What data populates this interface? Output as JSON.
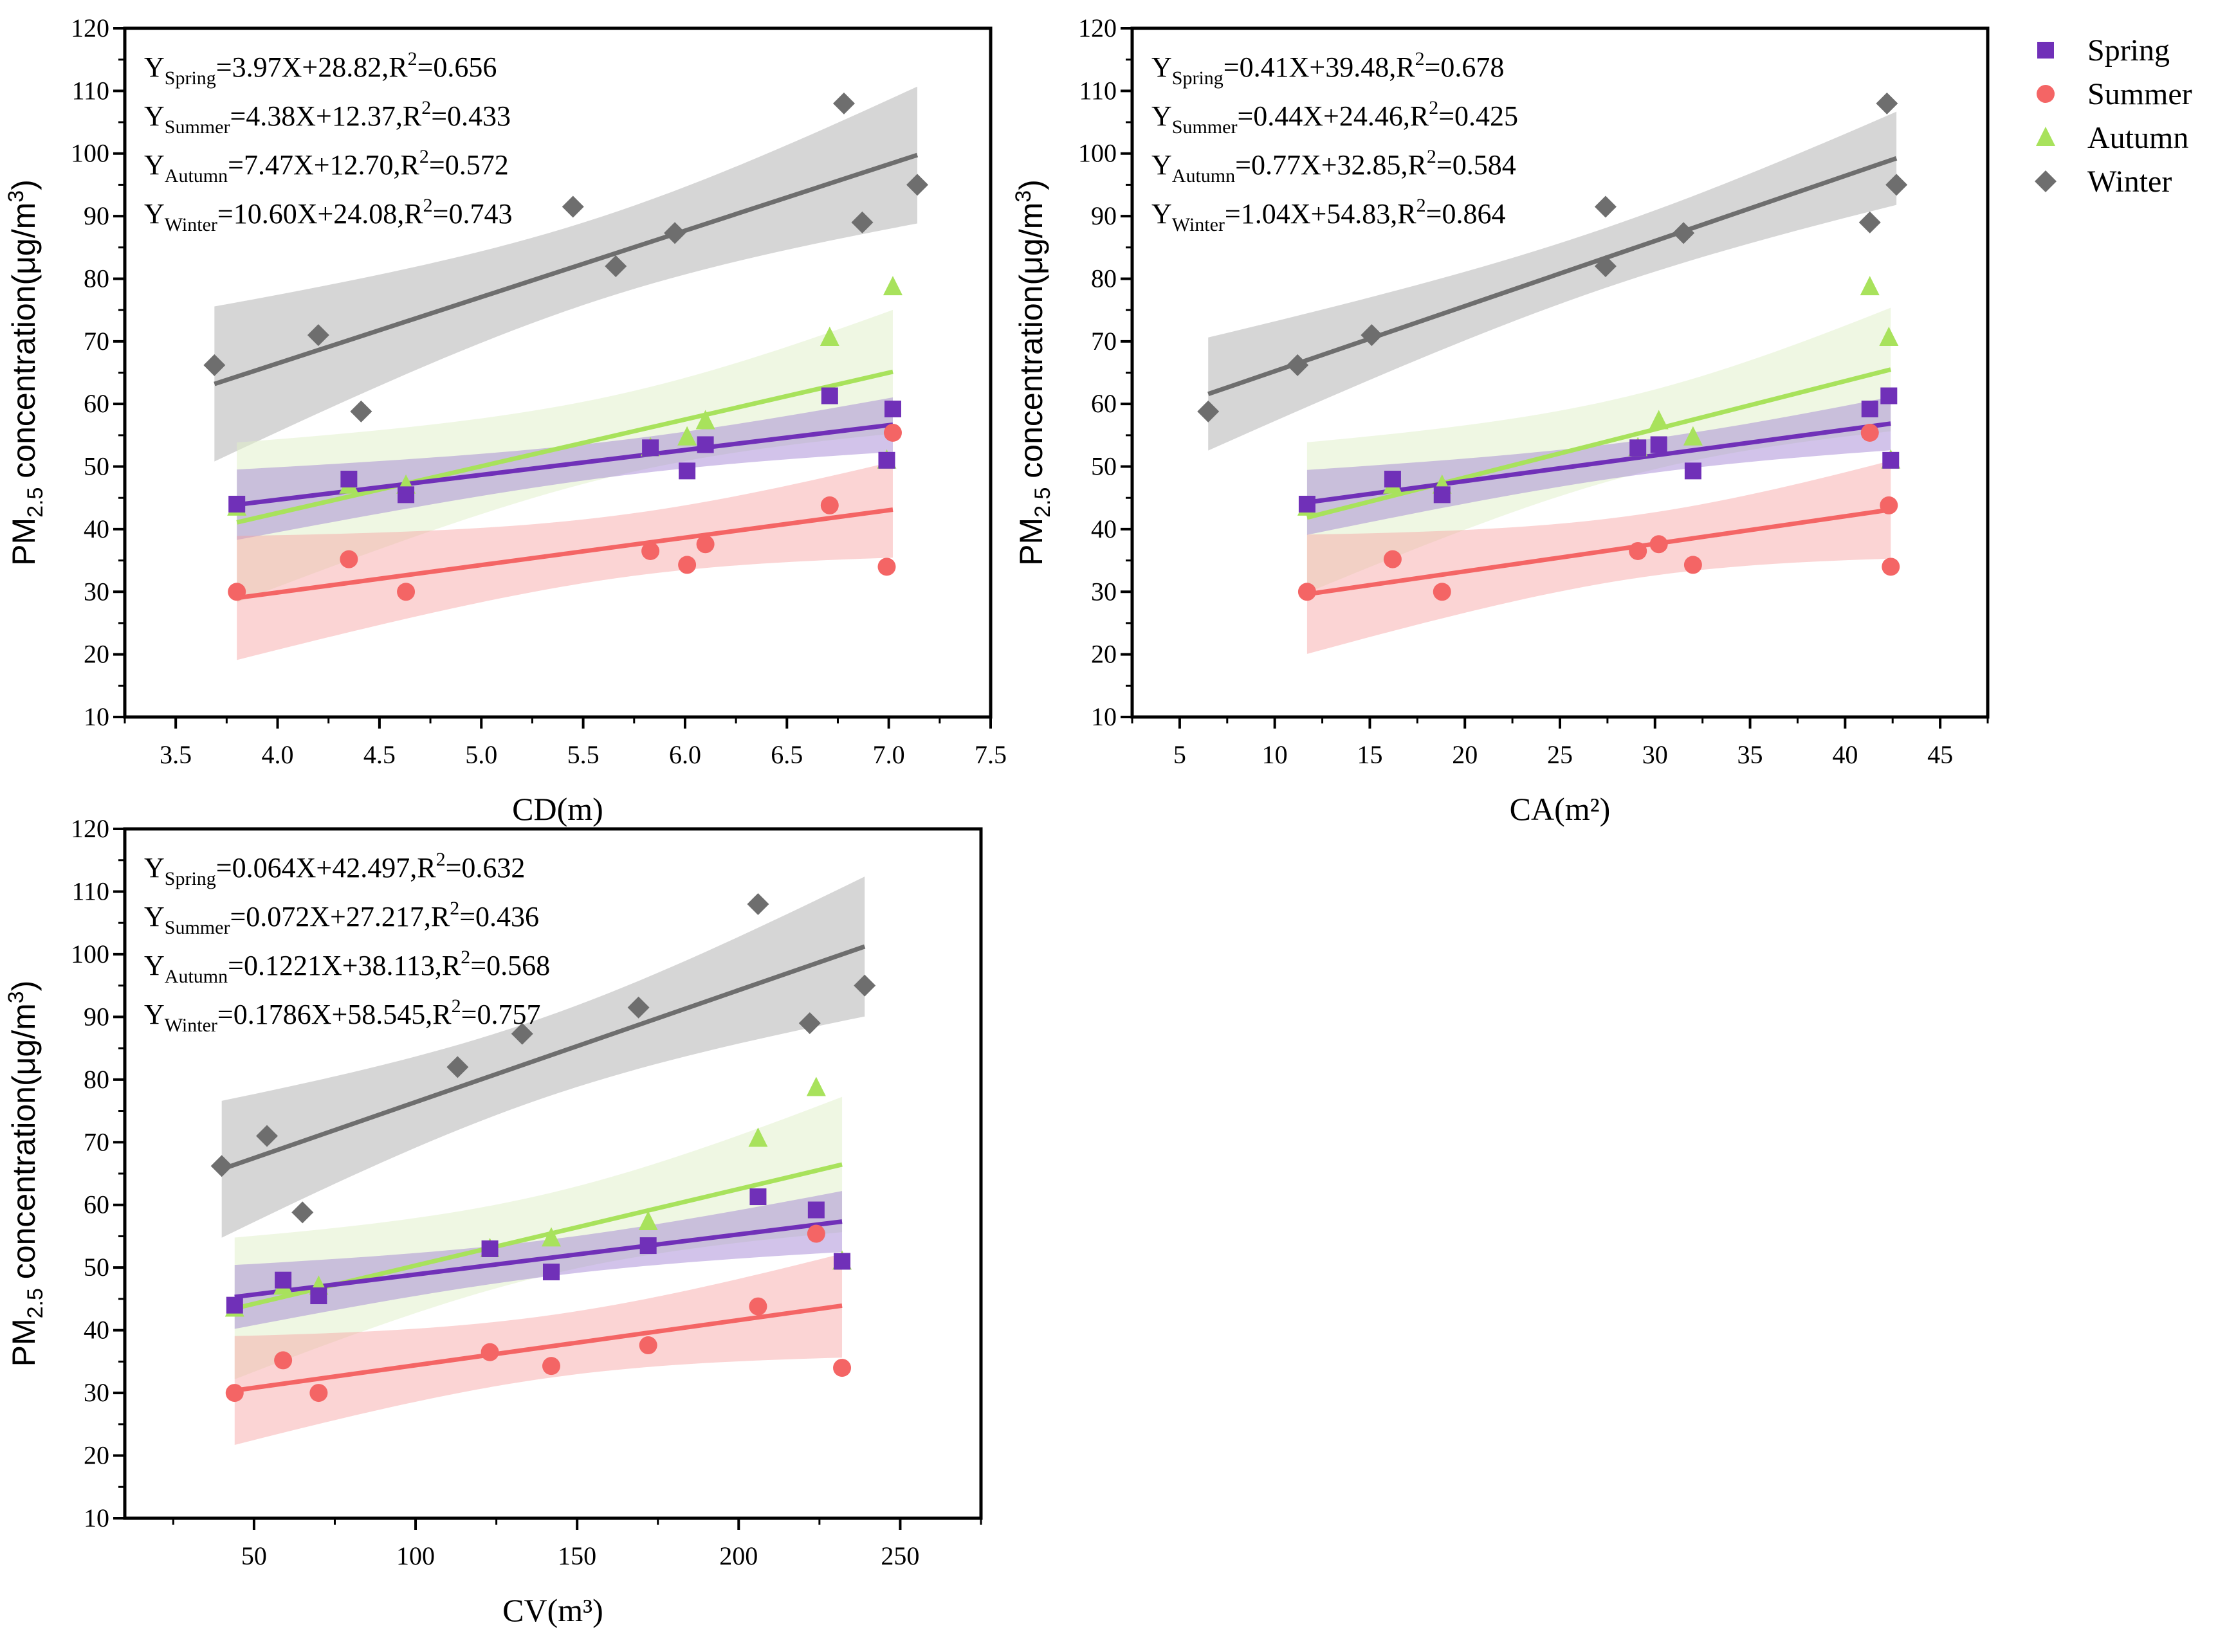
{
  "legend": [
    {
      "name": "Spring",
      "color": "#7030b8",
      "marker": "square"
    },
    {
      "name": "Summer",
      "color": "#f46565",
      "marker": "circle"
    },
    {
      "name": "Autumn",
      "color": "#a8e25c",
      "marker": "triangle"
    },
    {
      "name": "Winter",
      "color": "#6e6e6e",
      "marker": "diamond"
    }
  ],
  "chart_data": [
    {
      "type": "scatter",
      "xlabel": "CD(m)",
      "ylabel": {
        "main": "PM",
        "sub": "2.5",
        "rest": " concentration(μg/m",
        "sup": "3",
        "end": ")"
      },
      "xlim": [
        3.25,
        7.5
      ],
      "ylim": [
        10,
        120
      ],
      "xticks": [
        "3.5",
        "4.0",
        "4.5",
        "5.0",
        "5.5",
        "6.0",
        "6.5",
        "7.0",
        "7.5"
      ],
      "yticks": [
        10,
        20,
        30,
        40,
        50,
        60,
        70,
        80,
        90,
        100,
        110,
        120
      ],
      "equations": [
        {
          "season": "Spring",
          "expr": "=3.97X+28.82,R",
          "r2": "=0.656",
          "slope": 3.97,
          "intercept": 28.82
        },
        {
          "season": "Summer",
          "expr": "=4.38X+12.37,R",
          "r2": "=0.433",
          "slope": 4.38,
          "intercept": 12.37
        },
        {
          "season": "Autumn",
          "expr": "=7.47X+12.70,R",
          "r2": "=0.572",
          "slope": 7.47,
          "intercept": 12.7
        },
        {
          "season": "Winter",
          "expr": "=10.60X+24.08,R",
          "r2": "=0.743",
          "slope": 10.6,
          "intercept": 24.08
        }
      ],
      "series": [
        {
          "name": "Winter",
          "x": [
            3.69,
            4.2,
            4.41,
            5.45,
            5.66,
            5.95,
            6.78,
            6.87,
            7.14
          ],
          "y": [
            66.2,
            71,
            58.8,
            91.5,
            82,
            87.3,
            108,
            89,
            95
          ]
        },
        {
          "name": "Autumn",
          "x": [
            3.8,
            4.35,
            4.63,
            5.83,
            6.01,
            6.1,
            6.71,
            6.99,
            7.02
          ],
          "y": [
            43.5,
            47,
            47,
            53,
            54.7,
            57.3,
            70.6,
            51,
            78.7
          ]
        },
        {
          "name": "Spring",
          "x": [
            3.8,
            4.35,
            4.63,
            5.83,
            6.01,
            6.1,
            6.71,
            6.99,
            7.02
          ],
          "y": [
            44,
            48,
            45.5,
            53,
            49.3,
            53.5,
            61.3,
            51,
            59.2
          ]
        },
        {
          "name": "Summer",
          "x": [
            3.8,
            4.35,
            4.63,
            5.83,
            6.01,
            6.1,
            6.71,
            6.99,
            7.02
          ],
          "y": [
            30,
            35.2,
            30,
            36.5,
            34.3,
            37.6,
            43.8,
            34,
            55.4
          ]
        }
      ]
    },
    {
      "type": "scatter",
      "xlabel": "CA(m²)",
      "ylabel": {
        "main": "PM",
        "sub": "2.5",
        "rest": " concentration(μg/m",
        "sup": "3",
        "end": ")"
      },
      "xlim": [
        2.5,
        47.5
      ],
      "ylim": [
        10,
        120
      ],
      "xticks": [
        "5",
        "10",
        "15",
        "20",
        "25",
        "30",
        "35",
        "40",
        "45"
      ],
      "yticks": [
        10,
        20,
        30,
        40,
        50,
        60,
        70,
        80,
        90,
        100,
        110,
        120
      ],
      "equations": [
        {
          "season": "Spring",
          "expr": "=0.41X+39.48,R",
          "r2": "=0.678",
          "slope": 0.41,
          "intercept": 39.48
        },
        {
          "season": "Summer",
          "expr": "=0.44X+24.46,R",
          "r2": "=0.425",
          "slope": 0.44,
          "intercept": 24.46
        },
        {
          "season": "Autumn",
          "expr": "=0.77X+32.85,R",
          "r2": "=0.584",
          "slope": 0.77,
          "intercept": 32.85
        },
        {
          "season": "Winter",
          "expr": "=1.04X+54.83,R",
          "r2": "=0.864",
          "slope": 1.04,
          "intercept": 54.83
        }
      ],
      "series": [
        {
          "name": "Winter",
          "x": [
            6.5,
            11.2,
            15.1,
            27.4,
            27.4,
            31.5,
            41.3,
            42.2,
            42.7
          ],
          "y": [
            58.8,
            66.2,
            71,
            91.5,
            82,
            87.3,
            89,
            108,
            95
          ]
        },
        {
          "name": "Autumn",
          "x": [
            11.7,
            16.2,
            18.8,
            29.1,
            30.2,
            32,
            41.3,
            42.3,
            42.4
          ],
          "y": [
            43.5,
            47,
            47,
            53,
            57.3,
            54.7,
            78.7,
            70.6,
            51
          ]
        },
        {
          "name": "Spring",
          "x": [
            11.7,
            16.2,
            18.8,
            29.1,
            30.2,
            32,
            41.3,
            42.3,
            42.4
          ],
          "y": [
            44,
            48,
            45.5,
            53,
            53.5,
            49.3,
            59.2,
            61.3,
            51
          ]
        },
        {
          "name": "Summer",
          "x": [
            11.7,
            16.2,
            18.8,
            29.1,
            30.2,
            32,
            41.3,
            42.3,
            42.4
          ],
          "y": [
            30,
            35.2,
            30,
            36.5,
            37.6,
            34.3,
            55.4,
            43.8,
            34
          ]
        }
      ]
    },
    {
      "type": "scatter",
      "xlabel": "CV(m³)",
      "ylabel": {
        "main": "PM",
        "sub": "2.5",
        "rest": " concentration(μg/m",
        "sup": "3",
        "end": ")"
      },
      "xlim": [
        10,
        275
      ],
      "ylim": [
        10,
        120
      ],
      "xticks": [
        "50",
        "100",
        "150",
        "200",
        "250"
      ],
      "yticks": [
        10,
        20,
        30,
        40,
        50,
        60,
        70,
        80,
        90,
        100,
        110,
        120
      ],
      "equations": [
        {
          "season": "Spring",
          "expr": "=0.064X+42.497,R",
          "r2": "=0.632",
          "slope": 0.064,
          "intercept": 42.497
        },
        {
          "season": "Summer",
          "expr": "=0.072X+27.217,R",
          "r2": "=0.436",
          "slope": 0.072,
          "intercept": 27.217
        },
        {
          "season": "Autumn",
          "expr": "=0.1221X+38.113,R",
          "r2": "=0.568",
          "slope": 0.1221,
          "intercept": 38.113
        },
        {
          "season": "Winter",
          "expr": "=0.1786X+58.545,R",
          "r2": "=0.757",
          "slope": 0.1786,
          "intercept": 58.545
        }
      ],
      "series": [
        {
          "name": "Winter",
          "x": [
            40,
            54,
            65,
            113,
            133,
            169,
            206,
            222,
            239
          ],
          "y": [
            66.2,
            71,
            58.8,
            82,
            87.3,
            91.5,
            108,
            89,
            95
          ]
        },
        {
          "name": "Autumn",
          "x": [
            44,
            59,
            70,
            123,
            142,
            172,
            206,
            224,
            232
          ],
          "y": [
            43.5,
            47,
            47,
            53,
            54.7,
            57.3,
            70.6,
            78.7,
            51
          ]
        },
        {
          "name": "Spring",
          "x": [
            44,
            59,
            70,
            123,
            142,
            172,
            206,
            224,
            232
          ],
          "y": [
            44,
            48,
            45.5,
            53,
            49.3,
            53.5,
            61.3,
            59.2,
            51
          ]
        },
        {
          "name": "Summer",
          "x": [
            44,
            59,
            70,
            123,
            142,
            172,
            206,
            224,
            232
          ],
          "y": [
            30,
            35.2,
            30,
            36.5,
            34.3,
            37.6,
            43.8,
            55.4,
            34
          ]
        }
      ]
    }
  ]
}
